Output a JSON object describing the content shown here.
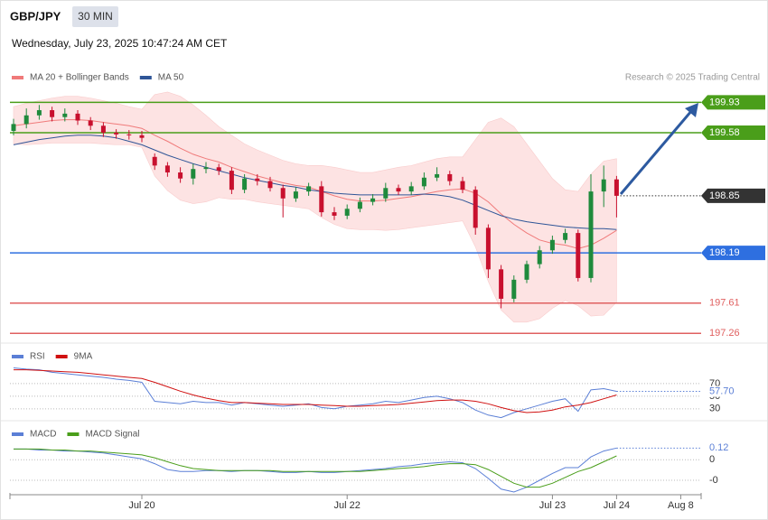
{
  "header": {
    "symbol": "GBP/JPY",
    "timeframe": "30 MIN",
    "timestamp": "Wednesday, July 23, 2025 10:47:24 AM CET",
    "credit": "Research © 2025 Trading Central"
  },
  "chart_data": [
    {
      "type": "candlestick",
      "up_color": "#1f8a3c",
      "down_color": "#c8102e",
      "ylim": [
        197.2,
        200.07
      ],
      "time_axis": [
        null,
        null,
        null,
        null,
        null,
        null,
        null,
        null,
        null,
        null,
        "Jul 20",
        null,
        null,
        null,
        null,
        null,
        null,
        null,
        null,
        null,
        null,
        null,
        null,
        null,
        null,
        null,
        "Jul 22",
        null,
        null,
        null,
        null,
        null,
        null,
        null,
        null,
        null,
        null,
        null,
        null,
        null,
        null,
        null,
        "Jul 23",
        null,
        null,
        null,
        null,
        "Jul 24",
        null,
        null,
        null,
        null,
        "Aug 8",
        null
      ],
      "open": [
        199.6,
        199.68,
        199.78,
        199.84,
        199.76,
        199.8,
        199.72,
        199.66,
        199.58,
        199.56,
        199.55,
        199.3,
        199.2,
        199.12,
        199.05,
        199.16,
        199.18,
        199.14,
        198.92,
        199.05,
        199.02,
        198.94,
        198.82,
        198.9,
        198.96,
        198.66,
        198.62,
        198.7,
        198.78,
        198.82,
        198.94,
        198.9,
        198.96,
        199.06,
        199.1,
        199.02,
        198.92,
        198.48,
        198.0,
        197.66,
        197.88,
        198.06,
        198.22,
        198.34,
        198.42,
        197.9,
        198.9,
        199.04
      ],
      "high": [
        199.74,
        199.86,
        199.9,
        199.88,
        199.86,
        199.84,
        199.76,
        199.7,
        199.62,
        199.61,
        199.6,
        199.34,
        199.24,
        199.18,
        199.22,
        199.24,
        199.22,
        199.18,
        199.1,
        199.1,
        199.07,
        198.98,
        198.95,
        199.0,
        199.02,
        198.72,
        198.75,
        198.83,
        198.87,
        199.0,
        198.98,
        199.01,
        199.12,
        199.18,
        199.14,
        199.07,
        198.96,
        198.52,
        198.05,
        197.93,
        198.1,
        198.27,
        198.39,
        198.47,
        198.46,
        199.1,
        199.2,
        199.08
      ],
      "low": [
        199.55,
        199.63,
        199.73,
        199.71,
        199.71,
        199.67,
        199.61,
        199.53,
        199.51,
        199.5,
        199.47,
        199.15,
        199.07,
        199.0,
        198.98,
        199.11,
        199.09,
        198.87,
        198.88,
        198.97,
        198.9,
        198.6,
        198.78,
        198.85,
        198.61,
        198.57,
        198.58,
        198.66,
        198.74,
        198.78,
        198.86,
        198.86,
        198.92,
        199.02,
        198.97,
        198.88,
        198.4,
        197.9,
        197.55,
        197.62,
        197.84,
        198.01,
        198.18,
        198.3,
        197.86,
        197.85,
        198.72,
        198.6
      ],
      "close": [
        199.68,
        199.78,
        199.84,
        199.76,
        199.8,
        199.72,
        199.66,
        199.58,
        199.56,
        199.55,
        199.52,
        199.2,
        199.12,
        199.05,
        199.16,
        199.18,
        199.14,
        198.92,
        199.05,
        199.02,
        198.94,
        198.82,
        198.9,
        198.96,
        198.66,
        198.62,
        198.7,
        198.78,
        198.82,
        198.94,
        198.9,
        198.96,
        199.06,
        199.1,
        199.02,
        198.92,
        198.48,
        198.0,
        197.66,
        197.88,
        198.06,
        198.22,
        198.34,
        198.42,
        197.9,
        198.9,
        199.04,
        198.85
      ],
      "series": [
        {
          "name": "MA 20 + Bollinger Bands",
          "color": "#f07a7a",
          "band_color": "#fde3e3",
          "values": [
            199.66,
            199.68,
            199.7,
            199.72,
            199.73,
            199.73,
            199.72,
            199.7,
            199.68,
            199.66,
            199.63,
            199.55,
            199.48,
            199.4,
            199.33,
            199.28,
            199.24,
            199.18,
            199.13,
            199.08,
            199.04,
            199.0,
            198.97,
            198.95,
            198.9,
            198.85,
            198.81,
            198.79,
            198.79,
            198.8,
            198.82,
            198.84,
            198.87,
            198.9,
            198.92,
            198.93,
            198.88,
            198.78,
            198.64,
            198.52,
            198.42,
            198.34,
            198.3,
            198.28,
            198.24,
            198.28,
            198.36,
            198.45
          ],
          "upper": [
            199.88,
            199.92,
            199.95,
            199.98,
            200.0,
            200.0,
            199.98,
            199.95,
            199.92,
            199.88,
            199.85,
            200.02,
            200.05,
            200.0,
            199.9,
            199.78,
            199.65,
            199.55,
            199.45,
            199.38,
            199.32,
            199.26,
            199.22,
            199.2,
            199.2,
            199.18,
            199.15,
            199.12,
            199.12,
            199.15,
            199.18,
            199.2,
            199.24,
            199.28,
            199.3,
            199.3,
            199.5,
            199.7,
            199.75,
            199.65,
            199.45,
            199.25,
            199.05,
            198.92,
            198.9,
            199.1,
            199.25,
            199.28
          ],
          "lower": [
            199.45,
            199.44,
            199.45,
            199.46,
            199.46,
            199.46,
            199.46,
            199.45,
            199.44,
            199.44,
            199.41,
            199.08,
            198.91,
            198.8,
            198.76,
            198.78,
            198.83,
            198.81,
            198.81,
            198.78,
            198.76,
            198.74,
            198.72,
            198.7,
            198.6,
            198.52,
            198.47,
            198.46,
            198.46,
            198.45,
            198.46,
            198.48,
            198.5,
            198.52,
            198.54,
            198.56,
            198.26,
            197.86,
            197.53,
            197.39,
            197.39,
            197.43,
            197.55,
            197.64,
            197.58,
            197.46,
            197.47,
            197.62
          ]
        },
        {
          "name": "MA 50",
          "color": "#2f5597",
          "values": [
            199.44,
            199.47,
            199.5,
            199.52,
            199.54,
            199.55,
            199.55,
            199.54,
            199.52,
            199.48,
            199.44,
            199.38,
            199.32,
            199.27,
            199.22,
            199.18,
            199.14,
            199.1,
            199.06,
            199.03,
            199.0,
            198.97,
            198.95,
            198.92,
            198.9,
            198.88,
            198.87,
            198.86,
            198.86,
            198.86,
            198.86,
            198.86,
            198.87,
            198.86,
            198.84,
            198.8,
            198.74,
            198.68,
            198.62,
            198.58,
            198.55,
            198.53,
            198.51,
            198.49,
            198.48,
            198.47,
            198.47,
            198.46
          ]
        }
      ],
      "levels": [
        {
          "value": 199.93,
          "color": "#4a9e1a",
          "style": "solid",
          "badge": true
        },
        {
          "value": 199.58,
          "color": "#4a9e1a",
          "style": "solid",
          "badge": true
        },
        {
          "value": 198.85,
          "color": "#333333",
          "style": "dotted",
          "badge": true
        },
        {
          "value": 198.19,
          "color": "#2e6fe0",
          "style": "solid",
          "badge": true
        },
        {
          "value": 197.61,
          "color": "#e06060",
          "style": "solid",
          "badge": false
        },
        {
          "value": 197.26,
          "color": "#e06060",
          "style": "solid",
          "badge": false
        }
      ]
    },
    {
      "type": "line",
      "ylim": [
        14,
        100
      ],
      "yticks": [
        70,
        50,
        30
      ],
      "last_label": {
        "value": 57.7,
        "label": "57.70"
      },
      "series": [
        {
          "name": "RSI",
          "color": "#5b7fd6",
          "values": [
            95,
            93,
            92,
            88,
            86,
            84,
            82,
            80,
            77,
            75,
            72,
            42,
            40,
            38,
            42,
            40,
            40,
            36,
            40,
            38,
            36,
            34,
            36,
            38,
            32,
            30,
            34,
            36,
            38,
            42,
            40,
            44,
            48,
            50,
            46,
            40,
            28,
            20,
            16,
            24,
            30,
            36,
            42,
            46,
            26,
            60,
            62,
            57.7
          ]
        },
        {
          "name": "9MA",
          "color": "#d01010",
          "values": [
            92,
            92,
            91,
            90,
            89,
            88,
            86,
            84,
            82,
            80,
            78,
            72,
            65,
            58,
            52,
            47,
            43,
            40,
            40,
            39,
            38,
            37,
            37,
            37,
            36,
            35,
            34,
            34,
            35,
            36,
            37,
            39,
            41,
            43,
            44,
            44,
            42,
            38,
            32,
            27,
            24,
            25,
            28,
            33,
            36,
            40,
            46,
            52
          ]
        }
      ]
    },
    {
      "type": "line",
      "ylim": [
        -0.33,
        0.16
      ],
      "yticks": [
        0,
        {
          "value": -0.21,
          "label": "-0"
        }
      ],
      "last_label": 0.12,
      "series": [
        {
          "name": "MACD",
          "color": "#5b7fd6",
          "values": [
            0.11,
            0.11,
            0.1,
            0.1,
            0.09,
            0.09,
            0.08,
            0.07,
            0.05,
            0.03,
            0.01,
            -0.04,
            -0.1,
            -0.12,
            -0.12,
            -0.11,
            -0.11,
            -0.12,
            -0.11,
            -0.11,
            -0.12,
            -0.13,
            -0.13,
            -0.12,
            -0.13,
            -0.13,
            -0.12,
            -0.11,
            -0.1,
            -0.09,
            -0.07,
            -0.06,
            -0.04,
            -0.03,
            -0.02,
            -0.03,
            -0.09,
            -0.19,
            -0.3,
            -0.33,
            -0.28,
            -0.21,
            -0.14,
            -0.08,
            -0.08,
            0.03,
            0.09,
            0.12
          ]
        },
        {
          "name": "MACD Signal",
          "color": "#4a9e1a",
          "values": [
            0.11,
            0.11,
            0.11,
            0.1,
            0.1,
            0.09,
            0.09,
            0.08,
            0.07,
            0.06,
            0.05,
            0.02,
            -0.02,
            -0.06,
            -0.09,
            -0.1,
            -0.11,
            -0.11,
            -0.11,
            -0.11,
            -0.11,
            -0.12,
            -0.12,
            -0.12,
            -0.12,
            -0.12,
            -0.12,
            -0.12,
            -0.11,
            -0.1,
            -0.09,
            -0.08,
            -0.07,
            -0.05,
            -0.04,
            -0.04,
            -0.05,
            -0.1,
            -0.17,
            -0.24,
            -0.28,
            -0.28,
            -0.24,
            -0.18,
            -0.12,
            -0.08,
            -0.02,
            0.04
          ]
        }
      ]
    }
  ]
}
